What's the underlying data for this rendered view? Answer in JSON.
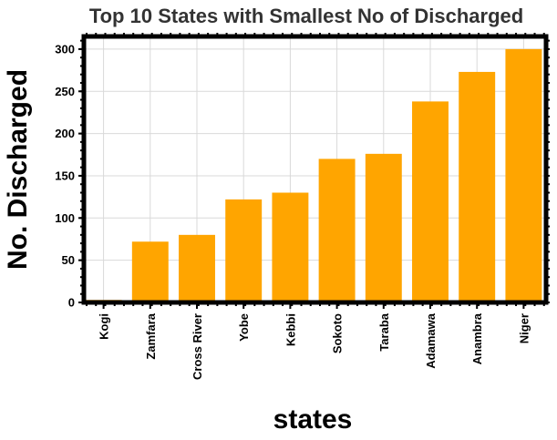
{
  "chart_data": {
    "type": "bar",
    "title": "Top 10 States with Smallest No of Discharged",
    "xlabel": "states",
    "ylabel": "No. Discharged",
    "categories": [
      "Kogi",
      "Zamfara",
      "Cross River",
      "Yobe",
      "Kebbi",
      "Sokoto",
      "Taraba",
      "Adamawa",
      "Anambra",
      "Niger"
    ],
    "values": [
      3,
      72,
      80,
      122,
      130,
      170,
      176,
      238,
      273,
      300
    ],
    "ylim": [
      0,
      315
    ],
    "yticks": [
      "0",
      "50",
      "100",
      "150",
      "200",
      "250",
      "300"
    ],
    "grid": true,
    "bar_color": "#FFA500"
  }
}
